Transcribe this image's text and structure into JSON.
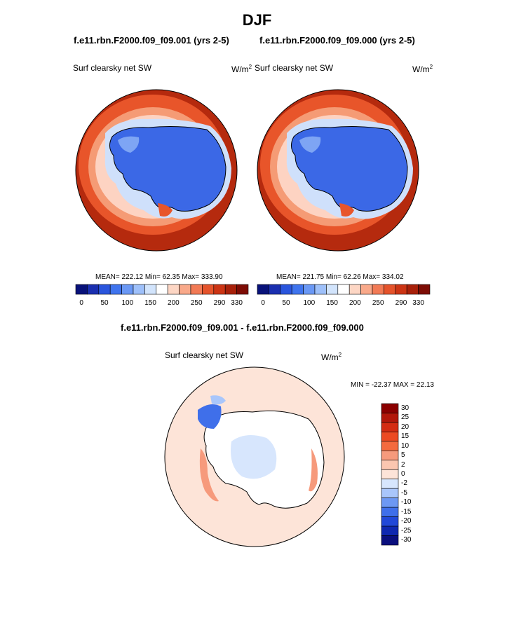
{
  "main_title": "DJF",
  "panels": [
    {
      "title": "f.e11.rbn.F2000.f09_f09.001 (yrs 2-5)",
      "variable": "Surf clearsky net SW",
      "units_base": "W/m",
      "units_exp": "2",
      "stats": "MEAN= 222.12  Min=  62.35  Max= 333.90"
    },
    {
      "title": "f.e11.rbn.F2000.f09_f09.000 (yrs 2-5)",
      "variable": "Surf clearsky net SW",
      "units_base": "W/m",
      "units_exp": "2",
      "stats": "MEAN= 221.75  Min=  62.26  Max= 334.02"
    }
  ],
  "diff_panel": {
    "title": "f.e11.rbn.F2000.f09_f09.001 - f.e11.rbn.F2000.f09_f09.000",
    "variable": "Surf clearsky net SW",
    "units_base": "W/m",
    "units_exp": "2",
    "minmax": "MIN = -22.37 MAX =  22.13"
  },
  "colorbar_abs": {
    "labels": [
      "0",
      "50",
      "100",
      "150",
      "200",
      "250",
      "290",
      "330"
    ],
    "colors": [
      "#08127a",
      "#1a2fb0",
      "#2a55dd",
      "#3f74ee",
      "#6a98f5",
      "#9ec0fa",
      "#d2e4fc",
      "#ffffff",
      "#fdd6c4",
      "#f9a98a",
      "#f27a55",
      "#e5532b",
      "#cc3414",
      "#a8200a",
      "#7d0c05"
    ]
  },
  "colorbar_diff": {
    "labels": [
      "30",
      "25",
      "20",
      "15",
      "10",
      "5",
      "2",
      "0",
      "-2",
      "-5",
      "-10",
      "-15",
      "-20",
      "-25",
      "-30"
    ],
    "colors": [
      "#8b0000",
      "#b2170a",
      "#d42c12",
      "#ec4a22",
      "#f46a3e",
      "#f69a7c",
      "#fbc6b0",
      "#fde4d8",
      "#d7e6fd",
      "#a9c6fb",
      "#6d98f3",
      "#3f6fea",
      "#2148d8",
      "#0f28b0",
      "#0a0f7e"
    ]
  },
  "map_colors": {
    "ocean_warm": "#b52a0e",
    "band_mid": "#e8552a",
    "band_light": "#f59b75",
    "band_pale": "#fdd3c2",
    "ice_edge": "#cfe0fb",
    "ice_light": "#7ea5f4",
    "ice": "#3b68e6",
    "diff_bg": "#fde4d8",
    "diff_land": "#ffffff"
  }
}
